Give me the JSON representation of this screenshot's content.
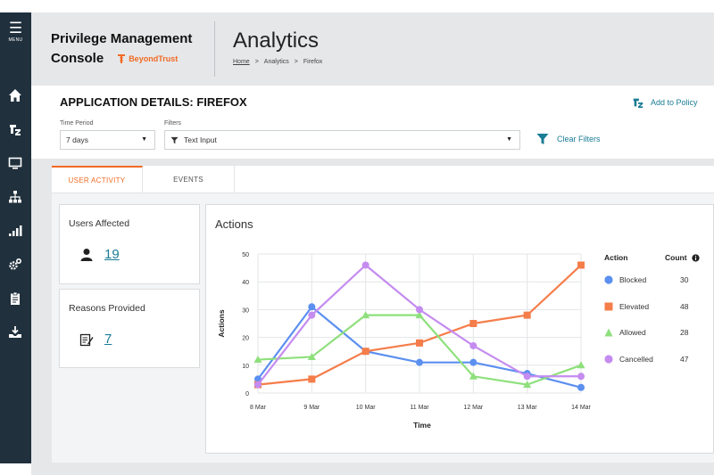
{
  "sidebar": {
    "menu_label": "MENU",
    "icons": [
      "home-icon",
      "policy-icon",
      "monitor-icon",
      "hierarchy-icon",
      "analytics-icon",
      "settings-icon",
      "clipboard-icon",
      "deploy-icon"
    ]
  },
  "header": {
    "brand_line1": "Privilege Management",
    "brand_line2": "Console",
    "logo_text": "BeyondTrust",
    "page_title": "Analytics",
    "breadcrumb": [
      "Home",
      "Analytics",
      "Firefox"
    ],
    "breadcrumb_sep": ">"
  },
  "details": {
    "title": "APPLICATION DETAILS: FIREFOX",
    "add_policy_label": "Add to Policy",
    "time_period_label": "Time Period",
    "time_period_value": "7 days",
    "filters_label": "Filters",
    "filters_value": "Text Input",
    "clear_filters_label": "Clear Filters"
  },
  "tabs": [
    {
      "label": "USER ACTIVITY",
      "active": true
    },
    {
      "label": "EVENTS",
      "active": false
    }
  ],
  "stats": {
    "users_affected_label": "Users Affected",
    "users_affected_value": "19",
    "reasons_provided_label": "Reasons Provided",
    "reasons_provided_value": "7"
  },
  "colors": {
    "accent": "#f06a24",
    "link": "#1a7c95",
    "sidebar": "#20303d",
    "blocked": "#5b8ff0",
    "elevated": "#f57d4a",
    "allowed": "#8ee07c",
    "cancelled": "#c58cf0"
  },
  "legend": {
    "action_header": "Action",
    "count_header": "Count"
  },
  "chart_data": {
    "type": "line",
    "title": "Actions",
    "xlabel": "Time",
    "ylabel": "Actions",
    "categories": [
      "8 Mar",
      "9 Mar",
      "10 Mar",
      "11 Mar",
      "12 Mar",
      "13 Mar",
      "14 Mar"
    ],
    "ylim": [
      0,
      50
    ],
    "yticks": [
      0,
      10,
      20,
      30,
      40,
      50
    ],
    "grid": true,
    "legend_position": "right",
    "series": [
      {
        "name": "Blocked",
        "count": "30",
        "marker": "circle",
        "values": [
          5,
          31,
          15,
          11,
          11,
          7,
          2
        ]
      },
      {
        "name": "Elevated",
        "count": "48",
        "marker": "square",
        "values": [
          3,
          5,
          15,
          18,
          25,
          28,
          46
        ]
      },
      {
        "name": "Allowed",
        "count": "28",
        "marker": "triangle",
        "values": [
          12,
          13,
          28,
          28,
          6,
          3,
          10
        ]
      },
      {
        "name": "Cancelled",
        "count": "47",
        "marker": "circle",
        "values": [
          3,
          28,
          46,
          30,
          17,
          6,
          6
        ]
      }
    ]
  }
}
